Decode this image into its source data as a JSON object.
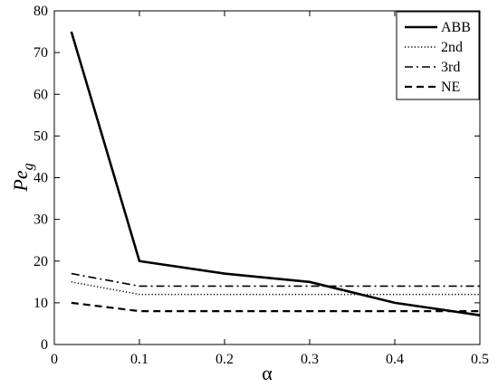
{
  "chart_data": {
    "type": "line",
    "x": [
      0.02,
      0.1,
      0.2,
      0.3,
      0.4,
      0.5
    ],
    "series": [
      {
        "name": "ABB",
        "values": [
          75,
          20,
          17,
          15,
          10,
          7
        ],
        "dash": "solid"
      },
      {
        "name": "2nd",
        "values": [
          15,
          12,
          12,
          12,
          12,
          12
        ],
        "dash": "dotted"
      },
      {
        "name": "3rd",
        "values": [
          17,
          14,
          14,
          14,
          14,
          14
        ],
        "dash": "dashdot"
      },
      {
        "name": "NE",
        "values": [
          10,
          8,
          8,
          8,
          8,
          8
        ],
        "dash": "dashed"
      }
    ],
    "xlim": [
      0,
      0.5
    ],
    "ylim": [
      0,
      80
    ],
    "xticks": [
      "0",
      "0.1",
      "0.2",
      "0.3",
      "0.4",
      "0.5"
    ],
    "yticks": [
      "0",
      "10",
      "20",
      "30",
      "40",
      "50",
      "60",
      "70",
      "80"
    ],
    "xlabel": "α",
    "ylabel": "Pe",
    "ylabel_sub": "g",
    "grid": false,
    "legend_position": "top-right",
    "line_color": "#000000"
  }
}
